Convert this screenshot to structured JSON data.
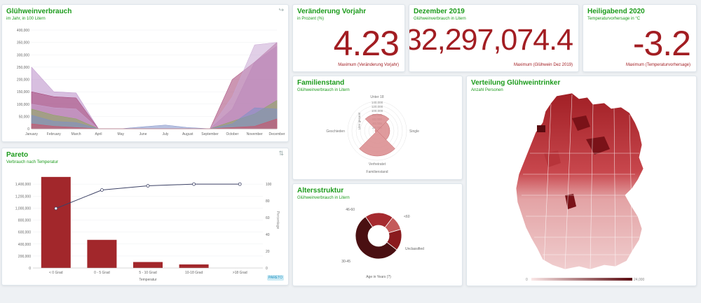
{
  "colors": {
    "accent": "#1c9b1c",
    "value": "#a21d22",
    "bar": "#a2272b"
  },
  "cards": {
    "gluehwein": {
      "title": "Glühweinverbrauch",
      "subtitle": "im Jahr, in 100 Litern",
      "corner_icon": "redo-arrow-icon"
    },
    "veraenderung": {
      "title": "Veränderung Vorjahr",
      "subtitle": "in Prozent (%)",
      "value": "4.23",
      "max_label": "Maximum (Veränderung Vorjahr)"
    },
    "dezember": {
      "title": "Dezember 2019",
      "subtitle": "Glühweinverbrauch in Litern",
      "value": "32,297,074.4",
      "max_label": "Maximum (Glühwein Dez 2019)"
    },
    "heiligabend": {
      "title": "Heiligabend 2020",
      "subtitle": "Temperaturvorhersage in °C",
      "value": "-3.2",
      "max_label": "Maximum (Temperaturvorhersage)"
    },
    "familienstand": {
      "title": "Familienstand",
      "subtitle": "Glühweinverbrauch in Litern"
    },
    "verteilung": {
      "title": "Verteilung Glühweintrinker",
      "subtitle": "Anzahl Personen",
      "legend_min": "0",
      "legend_max": "24,000"
    },
    "pareto": {
      "title": "Pareto",
      "subtitle": "Verbrauch nach Temperatur",
      "corner_icon": "sort-icon",
      "badge": "PARETO"
    },
    "alter": {
      "title": "Altersstruktur",
      "subtitle": "Glühweinverbrauch in Litern"
    }
  },
  "chart_data": [
    {
      "type": "area",
      "title": "Glühweinverbrauch",
      "categories": [
        "January",
        "February",
        "March",
        "April",
        "May",
        "June",
        "July",
        "August",
        "September",
        "October",
        "November",
        "December"
      ],
      "ylim": [
        0,
        400000
      ],
      "yticks": [
        "0",
        "50,000",
        "100,000",
        "150,000",
        "200,000",
        "250,000",
        "300,000",
        "350,000",
        "400,000"
      ],
      "series": [
        {
          "values": [
            250000,
            150000,
            145000,
            0,
            0,
            0,
            0,
            0,
            0,
            80000,
            270000,
            335000
          ],
          "color": "#b88ac7"
        },
        {
          "values": [
            150000,
            130000,
            125000,
            0,
            0,
            0,
            0,
            0,
            0,
            200000,
            270000,
            350000
          ],
          "color": "#a23f73"
        },
        {
          "values": [
            100000,
            85000,
            80000,
            0,
            0,
            0,
            0,
            0,
            0,
            130000,
            340000,
            350000
          ],
          "color": "#c9a7d4"
        },
        {
          "values": [
            80000,
            55000,
            40000,
            0,
            0,
            0,
            0,
            0,
            0,
            30000,
            60000,
            115000
          ],
          "color": "#8aa75a"
        },
        {
          "values": [
            55000,
            30000,
            25000,
            0,
            0,
            8000,
            15000,
            5000,
            0,
            20000,
            85000,
            80000
          ],
          "color": "#7e8fc8"
        },
        {
          "values": [
            20000,
            10000,
            5000,
            0,
            0,
            0,
            0,
            0,
            0,
            5000,
            10000,
            40000
          ],
          "color": "#d14b63"
        }
      ]
    },
    {
      "type": "bar",
      "title": "Pareto",
      "xlabel": "Temperatur",
      "ylabel2": "Percentage",
      "categories": [
        "< 0 Grad",
        "0 - 5 Grad",
        "5 - 10 Grad",
        "10-18 Grad",
        ">18 Grad"
      ],
      "values": [
        1520000,
        470000,
        100000,
        60000,
        0
      ],
      "pareto_line": [
        71,
        93,
        98,
        100,
        100
      ],
      "ylim": [
        0,
        1600000
      ],
      "yticks": [
        "0",
        "200,000",
        "400,000",
        "600,000",
        "800,000",
        "1,000,000",
        "1,200,000",
        "1,400,000"
      ],
      "y2ticks": [
        "0",
        "20",
        "40",
        "60",
        "80",
        "100"
      ]
    },
    {
      "type": "polar",
      "title": "Familienstand",
      "xlabel": "Familienstand",
      "ylabel": "Liter gesamt",
      "categories": [
        "Unter 18",
        "Single",
        "Verheiratet",
        "Geschieden"
      ],
      "values": [
        80000,
        60000,
        120000,
        10000
      ],
      "rticks": [
        "20,000",
        "40,000",
        "60,000",
        "80,000",
        "100,000",
        "120,000",
        "140,000"
      ]
    },
    {
      "type": "pie",
      "title": "Altersstruktur",
      "xlabel": "Age in Years (?)",
      "categories": [
        "46-60",
        "<60",
        "Unclassified",
        "30-45"
      ],
      "values": [
        20,
        10,
        15,
        55
      ],
      "colors": [
        "#a52a2f",
        "#c45a5a",
        "#8a1a1e",
        "#4a1012"
      ]
    }
  ]
}
